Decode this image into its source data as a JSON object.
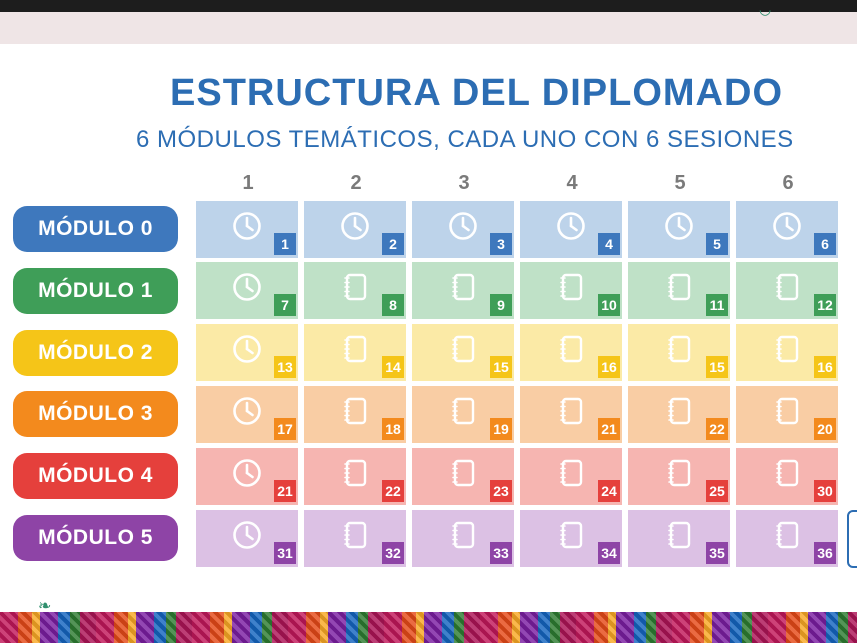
{
  "title": "ESTRUCTURA DEL DIPLOMADO",
  "subtitle": "6 MÓDULOS TEMÁTICOS, CADA UNO CON 6 SESIONES",
  "column_headers": [
    "1",
    "2",
    "3",
    "4",
    "5",
    "6"
  ],
  "modules": [
    {
      "label": "MÓDULO 0",
      "color": "#3e78bd",
      "cell_bg": "#bdd3ea",
      "badge": "#3e78bd",
      "cells": [
        {
          "icon": "clock-icon",
          "num": "1"
        },
        {
          "icon": "clock-icon",
          "num": "2"
        },
        {
          "icon": "clock-icon",
          "num": "3"
        },
        {
          "icon": "clock-icon",
          "num": "4"
        },
        {
          "icon": "clock-icon",
          "num": "5"
        },
        {
          "icon": "clock-icon",
          "num": "6"
        }
      ]
    },
    {
      "label": "MÓDULO 1",
      "color": "#3f9e58",
      "cell_bg": "#bfe1c7",
      "badge": "#3f9e58",
      "cells": [
        {
          "icon": "clock-icon",
          "num": "7"
        },
        {
          "icon": "notebook-icon",
          "num": "8"
        },
        {
          "icon": "notebook-icon",
          "num": "9"
        },
        {
          "icon": "notebook-icon",
          "num": "10"
        },
        {
          "icon": "notebook-icon",
          "num": "11"
        },
        {
          "icon": "notebook-icon",
          "num": "12"
        }
      ]
    },
    {
      "label": "MÓDULO 2",
      "color": "#f5c518",
      "cell_bg": "#fbeaa6",
      "badge": "#f5c518",
      "cells": [
        {
          "icon": "clock-icon",
          "num": "13"
        },
        {
          "icon": "notebook-icon",
          "num": "14"
        },
        {
          "icon": "notebook-icon",
          "num": "15"
        },
        {
          "icon": "notebook-icon",
          "num": "16"
        },
        {
          "icon": "notebook-icon",
          "num": "15"
        },
        {
          "icon": "notebook-icon",
          "num": "16"
        }
      ]
    },
    {
      "label": "MÓDULO 3",
      "color": "#f38a1d",
      "cell_bg": "#f9cda4",
      "badge": "#f38a1d",
      "cells": [
        {
          "icon": "clock-icon",
          "num": "17"
        },
        {
          "icon": "notebook-icon",
          "num": "18"
        },
        {
          "icon": "notebook-icon",
          "num": "19"
        },
        {
          "icon": "notebook-icon",
          "num": "21"
        },
        {
          "icon": "notebook-icon",
          "num": "22"
        },
        {
          "icon": "notebook-icon",
          "num": "20"
        }
      ]
    },
    {
      "label": "MÓDULO 4",
      "color": "#e5403c",
      "cell_bg": "#f6b5b1",
      "badge": "#e5403c",
      "cells": [
        {
          "icon": "clock-icon",
          "num": "21"
        },
        {
          "icon": "notebook-icon",
          "num": "22"
        },
        {
          "icon": "notebook-icon",
          "num": "23"
        },
        {
          "icon": "notebook-icon",
          "num": "24"
        },
        {
          "icon": "notebook-icon",
          "num": "25"
        },
        {
          "icon": "notebook-icon",
          "num": "30"
        }
      ]
    },
    {
      "label": "MÓDULO 5",
      "color": "#8e44a6",
      "cell_bg": "#dcc1e4",
      "badge": "#8e44a6",
      "cells": [
        {
          "icon": "clock-icon",
          "num": "31"
        },
        {
          "icon": "notebook-icon",
          "num": "32"
        },
        {
          "icon": "notebook-icon",
          "num": "33"
        },
        {
          "icon": "notebook-icon",
          "num": "34"
        },
        {
          "icon": "notebook-icon",
          "num": "35"
        },
        {
          "icon": "notebook-icon",
          "num": "36"
        }
      ]
    }
  ]
}
